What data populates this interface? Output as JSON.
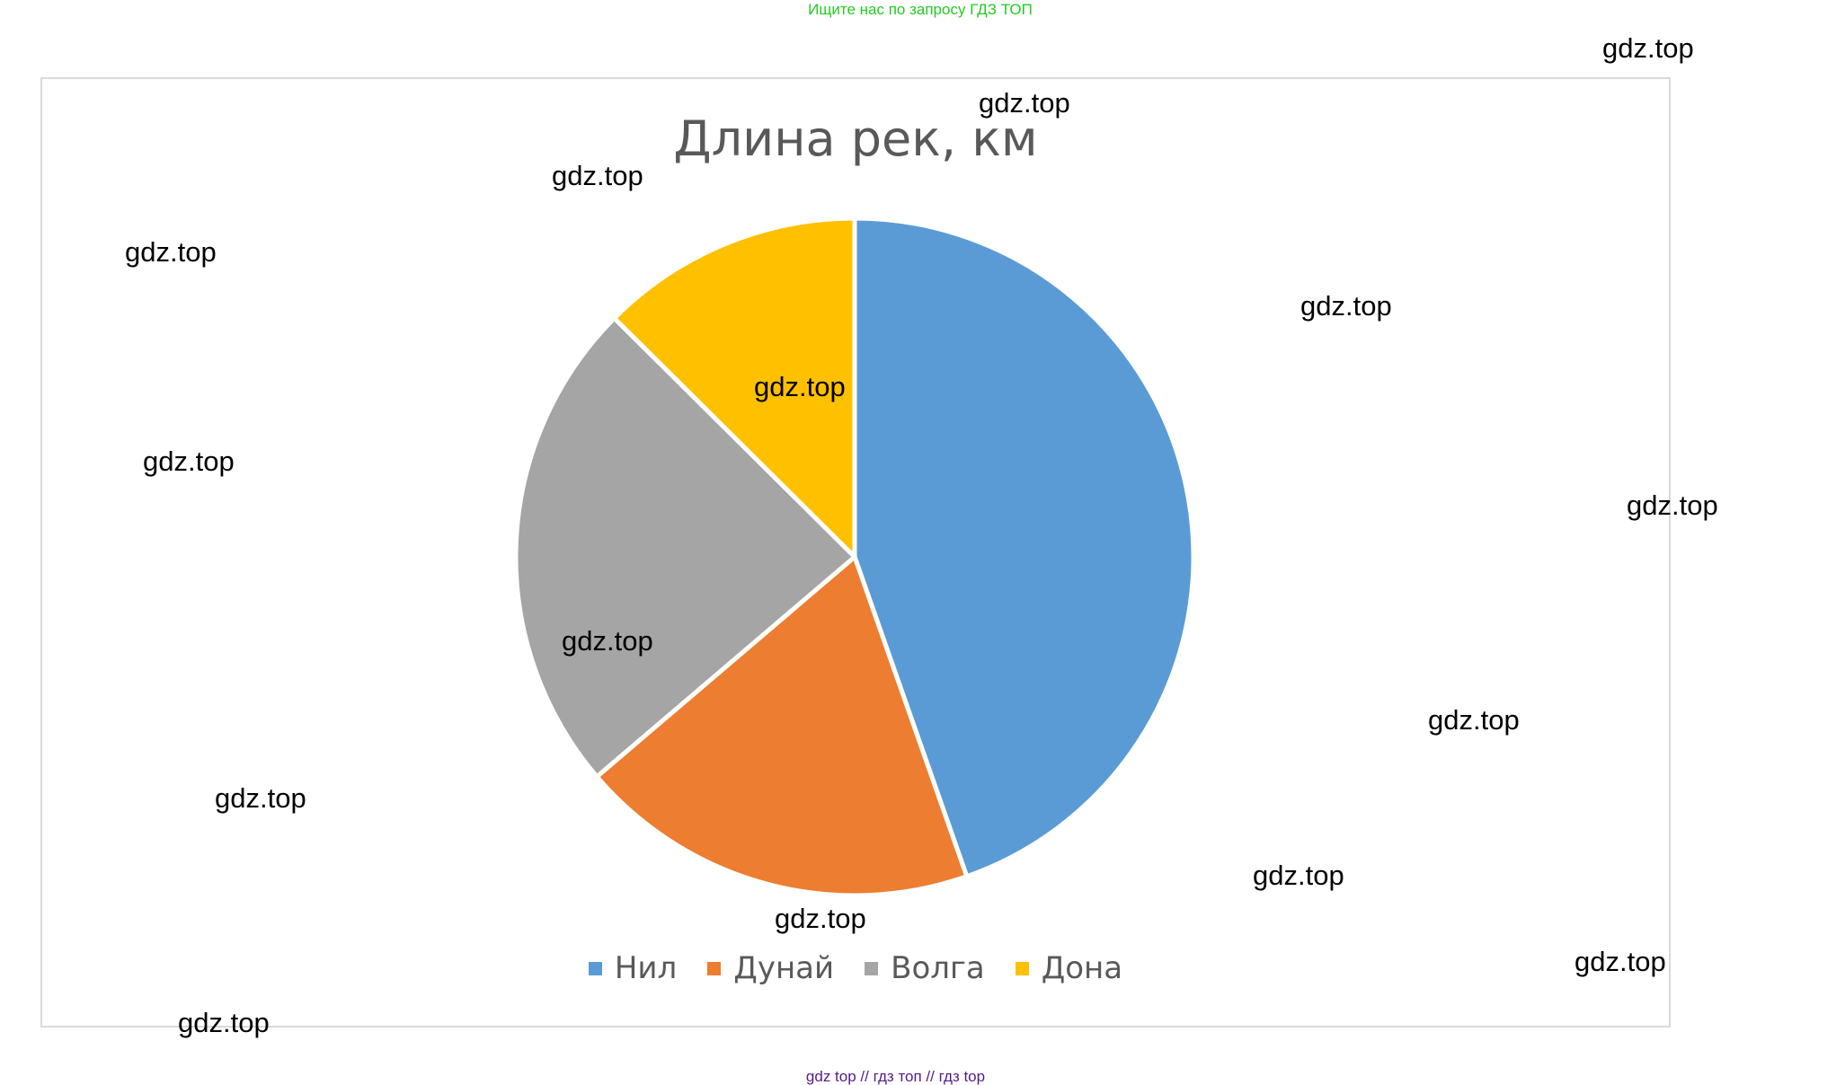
{
  "banner": {
    "text": "Ищите нас по запросу ГДЗ ТОП"
  },
  "footer": {
    "text": "gdz top  //  гдз топ  //  гдз top"
  },
  "watermark_text": "gdz.top",
  "chart_data": {
    "type": "pie",
    "title": "Длина рек, км",
    "categories": [
      "Нил",
      "Дунай",
      "Волга",
      "Дона"
    ],
    "values": [
      6650,
      2850,
      3530,
      1870
    ],
    "colors": [
      "#5b9bd5",
      "#ed7d31",
      "#a5a5a5",
      "#ffc000"
    ],
    "legend_position": "bottom",
    "start_angle_deg": 0,
    "direction": "clockwise"
  }
}
